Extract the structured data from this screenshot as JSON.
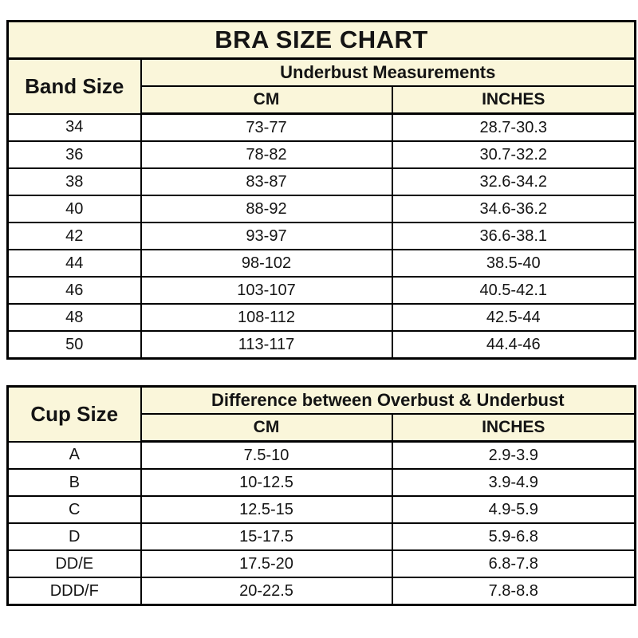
{
  "title": "BRA SIZE CHART",
  "colors": {
    "header_background": "#faf6da",
    "border": "#000000",
    "row_background": "#ffffff",
    "text": "#141414"
  },
  "band_table": {
    "row_header": "Band Size",
    "group_header": "Underbust Measurements",
    "col_cm": "CM",
    "col_inches": "INCHES",
    "rows": [
      {
        "size": "34",
        "cm": "73-77",
        "inches": "28.7-30.3"
      },
      {
        "size": "36",
        "cm": "78-82",
        "inches": "30.7-32.2"
      },
      {
        "size": "38",
        "cm": "83-87",
        "inches": "32.6-34.2"
      },
      {
        "size": "40",
        "cm": "88-92",
        "inches": "34.6-36.2"
      },
      {
        "size": "42",
        "cm": "93-97",
        "inches": "36.6-38.1"
      },
      {
        "size": "44",
        "cm": "98-102",
        "inches": "38.5-40"
      },
      {
        "size": "46",
        "cm": "103-107",
        "inches": "40.5-42.1"
      },
      {
        "size": "48",
        "cm": "108-112",
        "inches": "42.5-44"
      },
      {
        "size": "50",
        "cm": "113-117",
        "inches": "44.4-46"
      }
    ]
  },
  "cup_table": {
    "row_header": "Cup Size",
    "group_header": "Difference between Overbust & Underbust",
    "col_cm": "CM",
    "col_inches": "INCHES",
    "rows": [
      {
        "size": "A",
        "cm": "7.5-10",
        "inches": "2.9-3.9"
      },
      {
        "size": "B",
        "cm": "10-12.5",
        "inches": "3.9-4.9"
      },
      {
        "size": "C",
        "cm": "12.5-15",
        "inches": "4.9-5.9"
      },
      {
        "size": "D",
        "cm": "15-17.5",
        "inches": "5.9-6.8"
      },
      {
        "size": "DD/E",
        "cm": "17.5-20",
        "inches": "6.8-7.8"
      },
      {
        "size": "DDD/F",
        "cm": "20-22.5",
        "inches": "7.8-8.8"
      }
    ]
  },
  "chart_data": [
    {
      "type": "table",
      "title": "BRA SIZE CHART",
      "section": "Underbust Measurements",
      "columns": [
        "Band Size",
        "CM",
        "INCHES"
      ],
      "rows": [
        [
          "34",
          "73-77",
          "28.7-30.3"
        ],
        [
          "36",
          "78-82",
          "30.7-32.2"
        ],
        [
          "38",
          "83-87",
          "32.6-34.2"
        ],
        [
          "40",
          "88-92",
          "34.6-36.2"
        ],
        [
          "42",
          "93-97",
          "36.6-38.1"
        ],
        [
          "44",
          "98-102",
          "38.5-40"
        ],
        [
          "46",
          "103-107",
          "40.5-42.1"
        ],
        [
          "48",
          "108-112",
          "42.5-44"
        ],
        [
          "50",
          "113-117",
          "44.4-46"
        ]
      ]
    },
    {
      "type": "table",
      "section": "Difference between Overbust & Underbust",
      "columns": [
        "Cup Size",
        "CM",
        "INCHES"
      ],
      "rows": [
        [
          "A",
          "7.5-10",
          "2.9-3.9"
        ],
        [
          "B",
          "10-12.5",
          "3.9-4.9"
        ],
        [
          "C",
          "12.5-15",
          "4.9-5.9"
        ],
        [
          "D",
          "15-17.5",
          "5.9-6.8"
        ],
        [
          "DD/E",
          "17.5-20",
          "6.8-7.8"
        ],
        [
          "DDD/F",
          "20-22.5",
          "7.8-8.8"
        ]
      ]
    }
  ]
}
